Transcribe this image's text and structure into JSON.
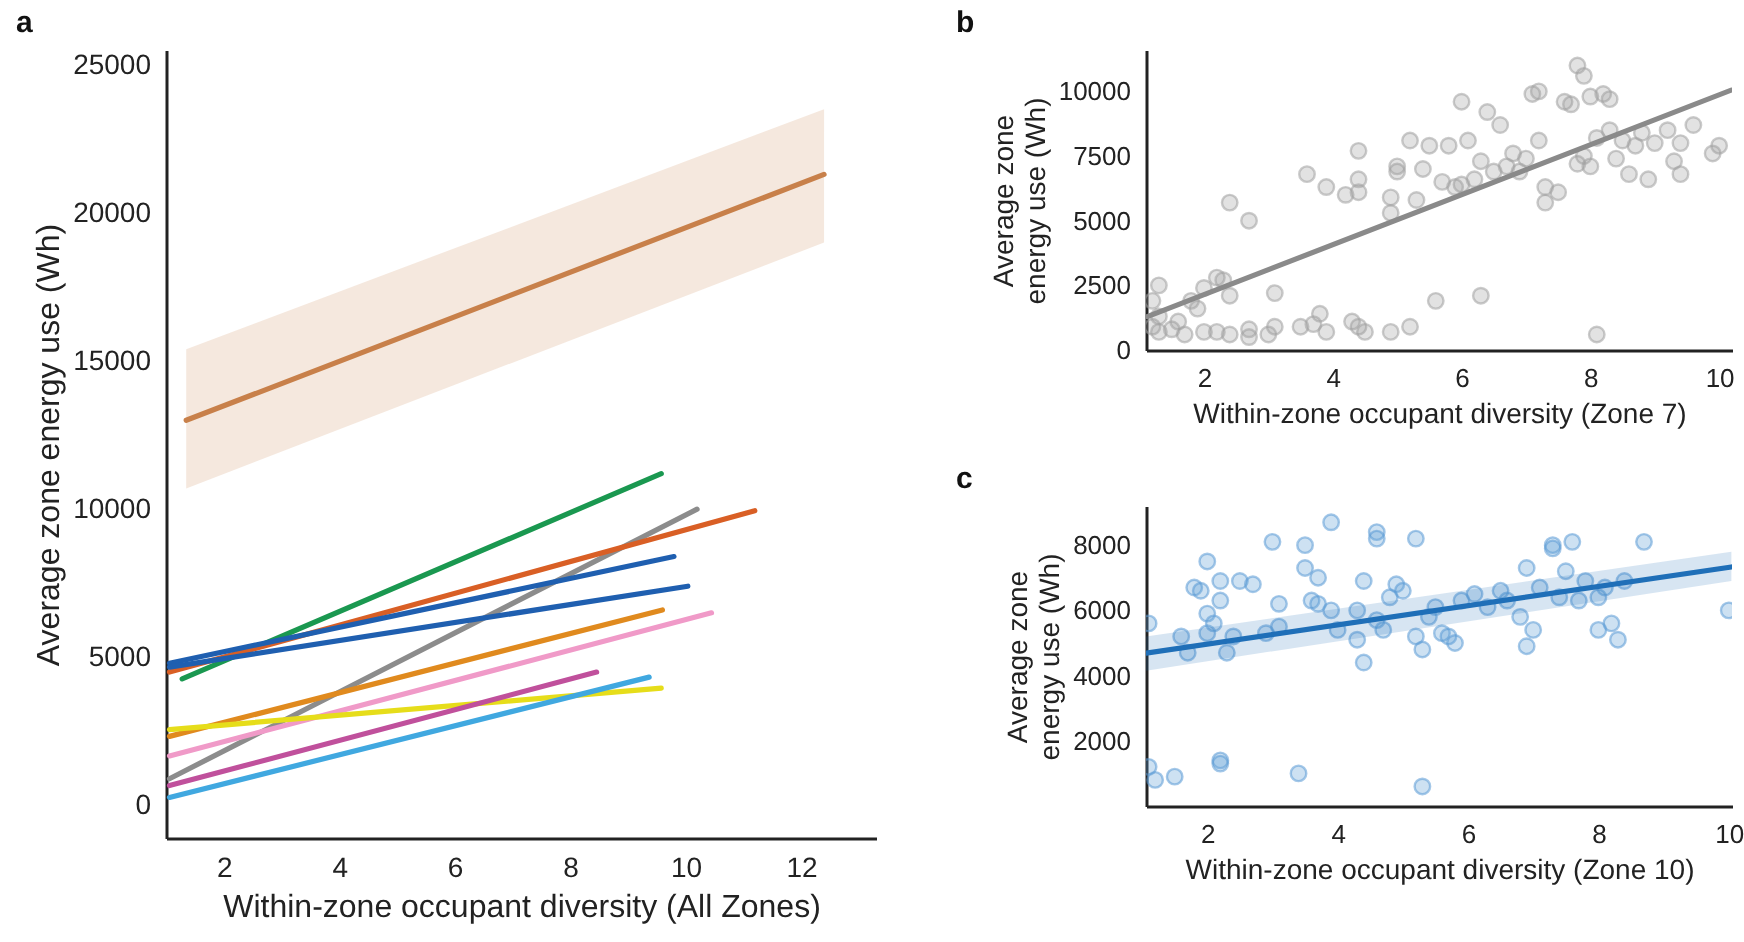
{
  "chart_data": [
    {
      "type": "line",
      "title": "a",
      "xlabel": "Within-zone occupant diversity (All Zones)",
      "ylabel": "Average zone energy use (Wh)",
      "xlim": [
        1,
        13.3
      ],
      "ylim": [
        -1100,
        25500
      ],
      "xticks": [
        2,
        4,
        6,
        8,
        10,
        12
      ],
      "yticks": [
        0,
        5000,
        10000,
        15000,
        20000,
        25000
      ],
      "grid": false,
      "marker": "none",
      "line_style": "solid",
      "series": [
        {
          "color": "#c8804a",
          "x": [
            1.35,
            12.4
          ],
          "values": [
            13000,
            21300
          ],
          "lower": [
            10700,
            19000
          ],
          "upper": [
            15400,
            23500
          ]
        },
        {
          "color": "#1a9850",
          "x": [
            1.28,
            9.58
          ],
          "values": [
            4270,
            11200
          ]
        },
        {
          "color": "#8c8c8c",
          "x": [
            1.06,
            10.2
          ],
          "values": [
            900,
            10000
          ]
        },
        {
          "color": "#d95f25",
          "x": [
            1.06,
            11.2
          ],
          "values": [
            4500,
            9950
          ]
        },
        {
          "color": "#1f5fb0",
          "x": [
            1.06,
            9.8
          ],
          "values": [
            4800,
            8400
          ]
        },
        {
          "color": "#1f5fb0",
          "x": [
            1.06,
            10.04
          ],
          "values": [
            4670,
            7400
          ]
        },
        {
          "color": "#e08a1e",
          "x": [
            1.06,
            9.6
          ],
          "values": [
            2330,
            6600
          ]
        },
        {
          "color": "#f09ac8",
          "x": [
            1.06,
            10.45
          ],
          "values": [
            1670,
            6500
          ]
        },
        {
          "color": "#e6dd1a",
          "x": [
            1.06,
            9.58
          ],
          "values": [
            2560,
            3960
          ]
        },
        {
          "color": "#c0509c",
          "x": [
            1.06,
            8.46
          ],
          "values": [
            670,
            4500
          ]
        },
        {
          "color": "#40a8e0",
          "x": [
            1.06,
            9.37
          ],
          "values": [
            270,
            4330
          ]
        }
      ]
    },
    {
      "type": "scatter",
      "title": "b",
      "xlabel": "Within-zone occupant diversity (Zone 7)",
      "ylabel": "Average zone energy use (Wh)",
      "xlim": [
        1.1,
        10.2
      ],
      "ylim": [
        0,
        11600
      ],
      "xticks": [
        2,
        4,
        6,
        8,
        10
      ],
      "yticks": [
        0,
        2500,
        5000,
        7500,
        10000
      ],
      "grid": false,
      "series": [
        {
          "color": "#a0a0a0",
          "marker": "circle",
          "x": [
            1.2,
            1.3,
            1.3,
            1.5,
            1.6,
            1.3,
            1.2,
            1.8,
            1.9,
            2.0,
            2.2,
            2.3,
            2.4,
            2.0,
            2.2,
            2.4,
            1.7,
            2.7,
            2.7,
            3.0,
            3.1,
            3.1,
            3.5,
            3.7,
            3.8,
            3.9,
            4.3,
            4.4,
            4.5,
            4.9,
            5.2,
            5.6,
            6.3,
            8.1,
            2.4,
            2.7,
            3.6,
            3.9,
            4.2,
            4.4,
            4.4,
            4.4,
            4.9,
            4.9,
            5.0,
            5.0,
            5.2,
            5.3,
            5.4,
            5.5,
            5.7,
            5.8,
            5.9,
            6.0,
            6.0,
            6.1,
            6.2,
            6.3,
            6.4,
            6.5,
            6.6,
            6.8,
            6.9,
            7.0,
            7.1,
            7.2,
            7.3,
            7.3,
            7.5,
            7.6,
            7.7,
            7.8,
            7.9,
            7.9,
            8.0,
            8.0,
            8.1,
            8.2,
            8.3,
            8.3,
            8.4,
            8.6,
            8.7,
            8.8,
            8.9,
            9.0,
            9.2,
            9.4,
            9.4,
            9.6,
            9.9,
            10.0,
            7.8,
            7.2,
            6.7,
            8.5,
            9.3
          ],
          "values": [
            900,
            1300,
            700,
            800,
            1100,
            2500,
            1900,
            1900,
            1600,
            2400,
            2800,
            2700,
            2100,
            700,
            700,
            600,
            600,
            500,
            800,
            600,
            900,
            2200,
            900,
            1000,
            1400,
            700,
            1100,
            900,
            700,
            700,
            900,
            1900,
            2100,
            600,
            5700,
            5000,
            6800,
            6300,
            6000,
            6100,
            6600,
            7700,
            5900,
            5300,
            6900,
            7100,
            8100,
            5800,
            7000,
            7900,
            6500,
            7900,
            6300,
            9600,
            6400,
            8100,
            6600,
            7300,
            9200,
            6900,
            8700,
            7600,
            6900,
            7400,
            9900,
            10000,
            6300,
            5700,
            6100,
            9600,
            9500,
            11000,
            10600,
            7500,
            9800,
            7100,
            8200,
            9900,
            9700,
            8500,
            7400,
            6800,
            7900,
            8400,
            6600,
            8000,
            8500,
            8000,
            6800,
            8700,
            7600,
            7900,
            7200,
            8100,
            7100,
            8100,
            7300
          ]
        },
        {
          "type": "line",
          "color": "#8a8a8a",
          "x": [
            1.12,
            10.19
          ],
          "values": [
            1290,
            10050
          ]
        }
      ]
    },
    {
      "type": "scatter",
      "title": "c",
      "xlabel": "Within-zone occupant diversity (Zone 10)",
      "ylabel": "Average zone energy use (Wh)",
      "xlim": [
        1.06,
        10.05
      ],
      "ylim": [
        0,
        9200
      ],
      "xticks": [
        2,
        4,
        6,
        8,
        10
      ],
      "yticks": [
        2000,
        4000,
        6000,
        8000
      ],
      "grid": false,
      "series": [
        {
          "color": "#5b9bd5",
          "marker": "circle",
          "x": [
            1.1,
            1.1,
            1.2,
            1.5,
            1.6,
            1.7,
            1.8,
            1.9,
            2.0,
            2.0,
            2.0,
            2.1,
            2.2,
            2.2,
            2.2,
            2.2,
            2.3,
            2.4,
            2.5,
            2.7,
            2.9,
            3.0,
            3.1,
            3.1,
            3.4,
            3.5,
            3.5,
            3.6,
            3.7,
            3.7,
            3.9,
            3.9,
            4.0,
            4.3,
            4.3,
            4.4,
            4.4,
            4.6,
            4.6,
            4.6,
            4.7,
            4.8,
            4.9,
            5.0,
            5.2,
            5.2,
            5.3,
            5.3,
            5.4,
            5.5,
            5.6,
            5.7,
            5.8,
            5.9,
            6.1,
            6.3,
            6.5,
            6.6,
            6.8,
            6.9,
            6.9,
            7.0,
            7.1,
            7.3,
            7.3,
            7.4,
            7.5,
            7.6,
            7.7,
            7.8,
            8.0,
            8.0,
            8.1,
            8.2,
            8.3,
            8.4,
            8.7,
            10.0
          ],
          "values": [
            5600,
            1200,
            800,
            900,
            5200,
            4700,
            6700,
            6600,
            7500,
            5300,
            5900,
            5600,
            6900,
            6300,
            1300,
            1400,
            4700,
            5200,
            6900,
            6800,
            5300,
            8100,
            6200,
            5500,
            1000,
            8000,
            7300,
            6300,
            6200,
            7000,
            8700,
            6000,
            5400,
            6000,
            5100,
            4400,
            6900,
            8400,
            8200,
            5700,
            5400,
            6400,
            6800,
            6600,
            8200,
            5200,
            4800,
            600,
            5800,
            6100,
            5300,
            5200,
            5000,
            6300,
            6500,
            6100,
            6600,
            6300,
            5800,
            4900,
            7300,
            5400,
            6700,
            8000,
            7900,
            6400,
            7200,
            8100,
            6300,
            6900,
            6400,
            5400,
            6700,
            5600,
            5100,
            6900,
            8100,
            6000
          ]
        },
        {
          "type": "line",
          "color": "#1f6fb8",
          "x": [
            1.06,
            10.04
          ],
          "values": [
            4690,
            7330
          ],
          "lower": [
            4150,
            6900
          ],
          "upper": [
            5200,
            7800
          ]
        }
      ]
    }
  ]
}
